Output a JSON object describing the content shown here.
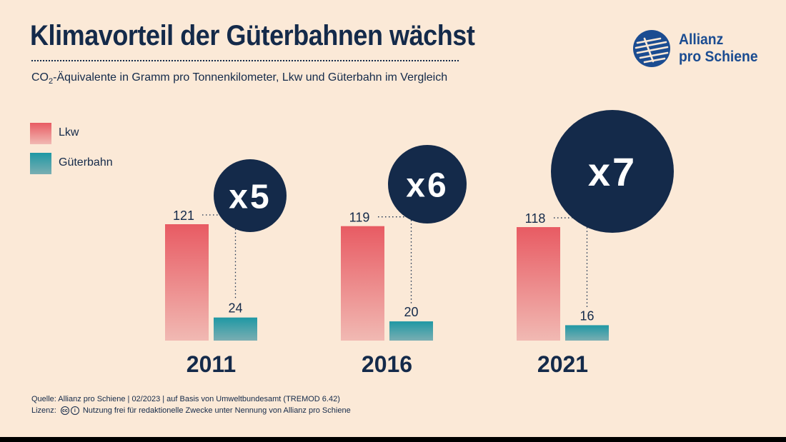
{
  "header": {
    "title": "Klimavorteil der Güterbahnen wächst",
    "subtitle_prefix": "CO",
    "subtitle_sub": "2",
    "subtitle_rest": "-Äquivalente in Gramm pro Tonnenkilometer, Lkw und Güterbahn im Vergleich"
  },
  "logo": {
    "line1": "Allianz",
    "line2": "pro Schiene",
    "icon": "allianz-pro-schiene-logo-icon",
    "color": "#1b4c91"
  },
  "chart_data": {
    "type": "bar",
    "categories": [
      "2011",
      "2016",
      "2021"
    ],
    "series": [
      {
        "name": "Lkw",
        "values": [
          121,
          119,
          118
        ],
        "color_top": "#e85b63",
        "color_bottom": "#f1b9b3"
      },
      {
        "name": "Güterbahn",
        "values": [
          24,
          20,
          16
        ],
        "color_top": "#1f98a4",
        "color_bottom": "#7aaeb2"
      }
    ],
    "ratios": [
      "x5",
      "x6",
      "x7"
    ],
    "ratio_color": "#142a4a",
    "title": "Klimavorteil der Güterbahnen wächst",
    "ylim": [
      0,
      121
    ],
    "grid": false,
    "legend": "top-left"
  },
  "footer": {
    "source": "Quelle: Allianz pro Schiene | 02/2023 | auf Basis von Umweltbundesamt (TREMOD 6.42)",
    "license_label": "Lizenz:",
    "license_icons": [
      "cc-icon",
      "attribution-icon"
    ],
    "license_text": "Nutzung frei für redaktionelle Zwecke unter Nennung von Allianz pro Schiene"
  }
}
